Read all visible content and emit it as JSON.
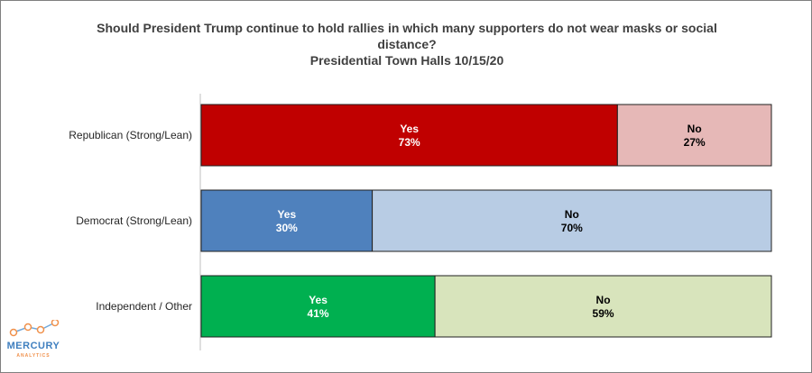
{
  "chart_data": {
    "type": "bar",
    "orientation": "horizontal",
    "stacked": true,
    "normalized_percent": true,
    "title_line1": "Should President Trump continue to hold rallies in which many supporters do not wear masks or social distance?",
    "title_line2": "Presidential Town Halls 10/15/20",
    "xlabel": "",
    "ylabel": "",
    "xlim": [
      0,
      100
    ],
    "grid": false,
    "legend": "none",
    "categories": [
      "Republican (Strong/Lean)",
      "Democrat (Strong/Lean)",
      "Independent / Other"
    ],
    "series": [
      {
        "label": "Yes",
        "values": [
          73,
          30,
          41
        ],
        "value_labels": [
          "73%",
          "30%",
          "41%"
        ]
      },
      {
        "label": "No",
        "values": [
          27,
          70,
          59
        ],
        "value_labels": [
          "27%",
          "70%",
          "59%"
        ]
      }
    ],
    "colors": [
      {
        "yes": "#c00000",
        "no": "#e6b8b7",
        "yes_text": "#ffffff",
        "no_text": "#000000"
      },
      {
        "yes": "#4f81bd",
        "no": "#b8cce4",
        "yes_text": "#ffffff",
        "no_text": "#000000"
      },
      {
        "yes": "#00b050",
        "no": "#d8e4bc",
        "yes_text": "#ffffff",
        "no_text": "#000000"
      }
    ]
  },
  "logo": {
    "name": "MERCURY",
    "sub": "ANALYTICS",
    "line_color": "#6fa8dc",
    "dot_color": "#f0904a"
  }
}
